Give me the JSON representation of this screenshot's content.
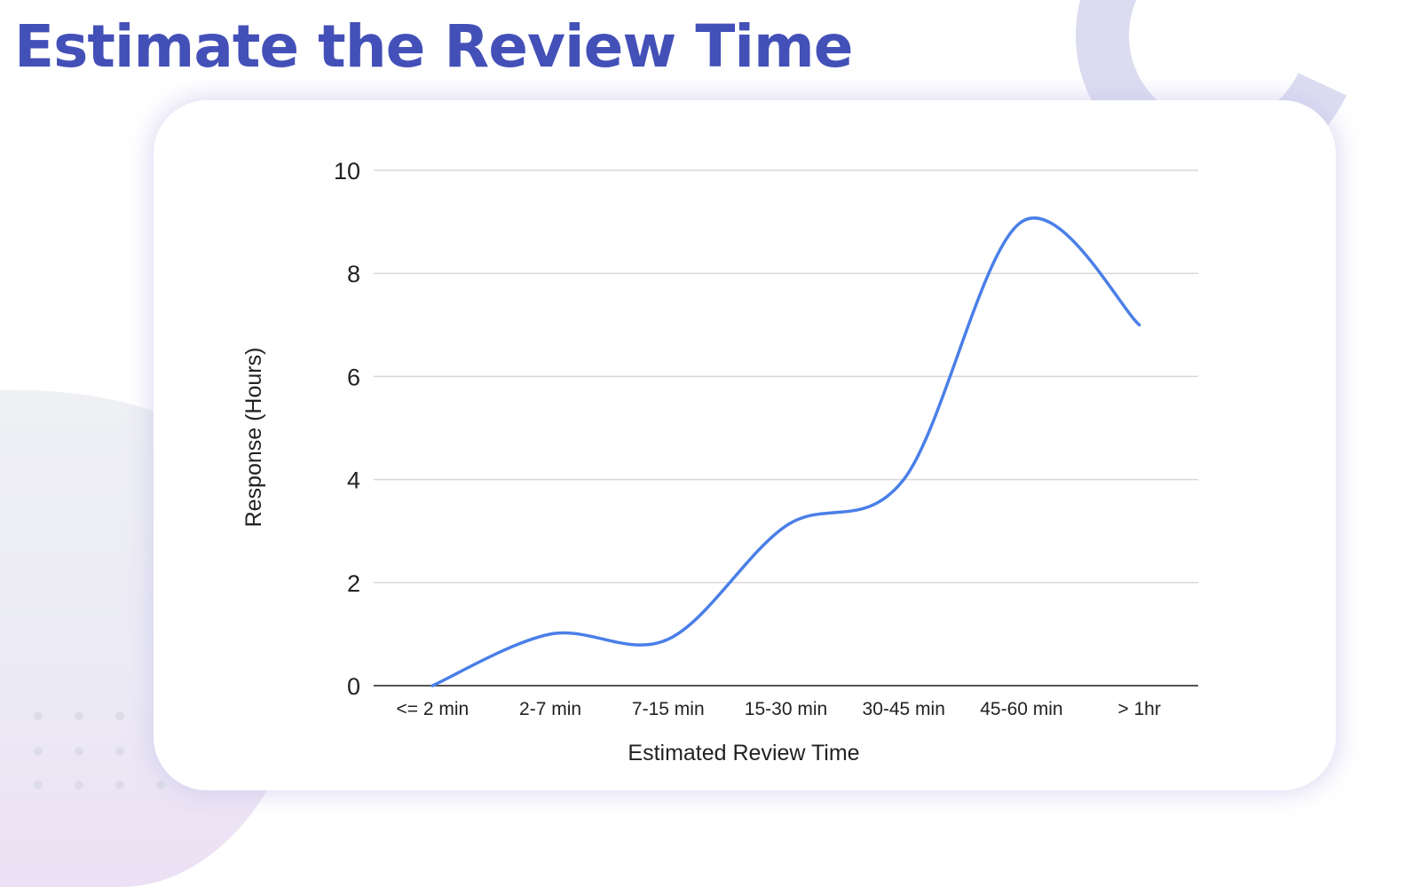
{
  "slide": {
    "title": "Estimate the Review Time"
  },
  "colors": {
    "title": "#4350b8",
    "line": "#4a7fe8",
    "grid": "#d9d9d9",
    "axis": "#555555"
  },
  "chart_data": {
    "type": "line",
    "smooth": true,
    "title": "",
    "xlabel": "Estimated Review Time",
    "ylabel": "Response (Hours)",
    "categories": [
      "<= 2 min",
      "2-7 min",
      "7-15 min",
      "15-30 min",
      "30-45 min",
      "45-60 min",
      "> 1hr"
    ],
    "series": [
      {
        "name": "Response (Hours)",
        "values": [
          0,
          1.0,
          0.9,
          3.1,
          4.0,
          9.0,
          7.0
        ]
      }
    ],
    "yticks": [
      "0",
      "2",
      "4",
      "6",
      "8",
      "10"
    ],
    "ylim": [
      0,
      10
    ],
    "grid": true,
    "legend": "none"
  }
}
